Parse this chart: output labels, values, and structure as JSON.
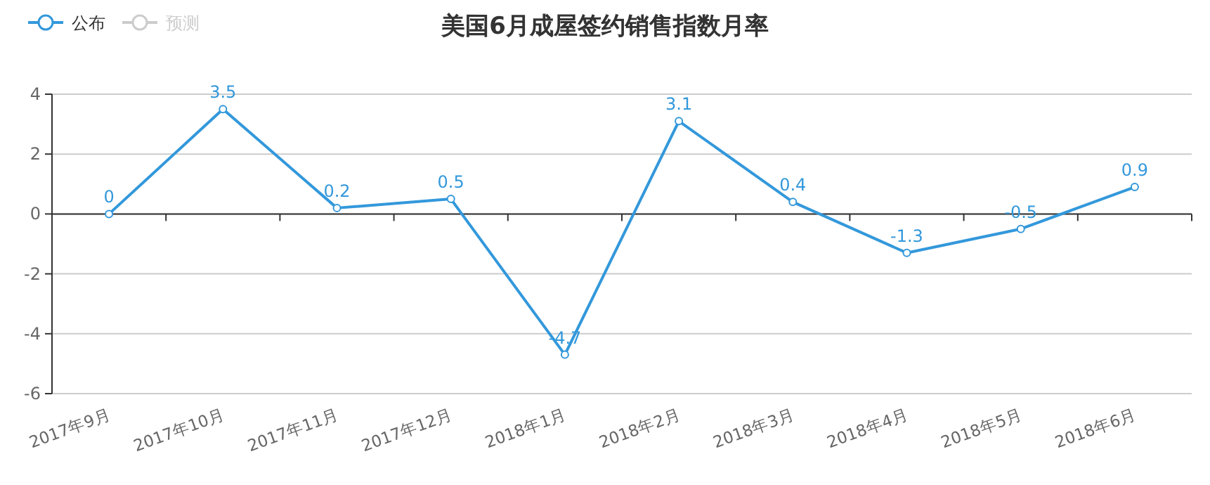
{
  "chart_data": {
    "type": "line",
    "title": "美国6月成屋签约销售指数月率",
    "categories": [
      "2017年9月",
      "2017年10月",
      "2017年11月",
      "2017年12月",
      "2018年1月",
      "2018年2月",
      "2018年3月",
      "2018年4月",
      "2018年5月",
      "2018年6月"
    ],
    "series": [
      {
        "name": "公布",
        "color": "#3398db",
        "values": [
          0,
          3.5,
          0.2,
          0.5,
          -4.7,
          3.1,
          0.4,
          -1.3,
          -0.5,
          0.9
        ]
      },
      {
        "name": "预测",
        "color": "#cccccc",
        "values": [
          null,
          null,
          null,
          null,
          null,
          null,
          null,
          null,
          null,
          null
        ]
      }
    ],
    "ylim": [
      -6,
      4
    ],
    "yticks": [
      -6,
      -4,
      -2,
      0,
      2,
      4
    ],
    "grid": "y",
    "legend": "top left",
    "marker": "circle",
    "data_labels": true
  }
}
